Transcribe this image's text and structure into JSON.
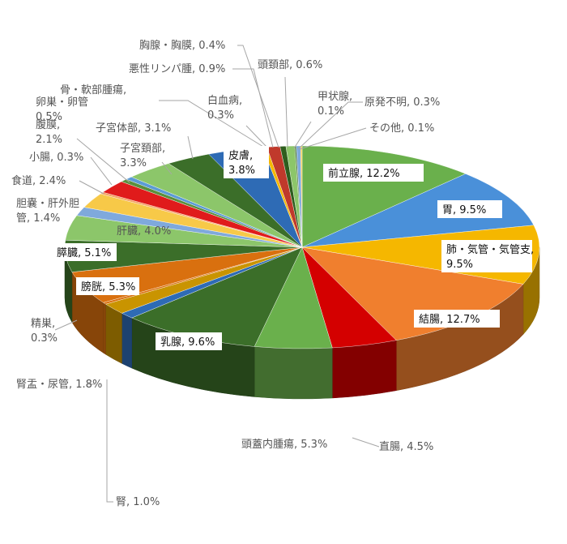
{
  "chart_data": {
    "type": "pie",
    "title": "",
    "three_d": true,
    "slices": [
      {
        "name": "前立腺",
        "value": 12.2,
        "label": "前立腺, 12.2%",
        "color": "#6ab04c"
      },
      {
        "name": "胃",
        "value": 9.5,
        "label": "胃, 9.5%",
        "color": "#4a90d9"
      },
      {
        "name": "肺・気管・気管支",
        "value": 9.5,
        "label1": "肺・気管・気管支,",
        "label2": "9.5%",
        "color": "#f5b700"
      },
      {
        "name": "結腸",
        "value": 12.7,
        "label": "結腸, 12.7%",
        "color": "#f07f2e"
      },
      {
        "name": "直腸",
        "value": 4.5,
        "label": "直腸, 4.5%",
        "color": "#d40000"
      },
      {
        "name": "頭蓋内腫瘍",
        "value": 5.3,
        "label": "頭蓋内腫瘍, 5.3%",
        "color": "#6ab04c"
      },
      {
        "name": "乳腺",
        "value": 9.6,
        "label": "乳腺, 9.6%",
        "color": "#3b6e29"
      },
      {
        "name": "腎",
        "value": 1.0,
        "label": "腎, 1.0%",
        "color": "#2e6bb5"
      },
      {
        "name": "腎盂・尿管",
        "value": 1.8,
        "label": "腎盂・尿管, 1.8%",
        "color": "#c99400"
      },
      {
        "name": "精巣",
        "value": 0.3,
        "label1": "精巣,",
        "label2": "0.3%",
        "color": "#d9700f"
      },
      {
        "name": "膀胱",
        "value": 5.3,
        "label": "膀胱, 5.3%",
        "color": "#d9700f"
      },
      {
        "name": "膵臓",
        "value": 5.1,
        "label": "膵臓, 5.1%",
        "color": "#3b6e29"
      },
      {
        "name": "肝臓",
        "value": 4.0,
        "label": "肝臓, 4.0%",
        "color": "#8cc66a"
      },
      {
        "name": "胆嚢・肝外胆管",
        "value": 1.4,
        "label1": "胆嚢・肝外胆",
        "label2": "管, 1.4%",
        "color": "#7fa9dc"
      },
      {
        "name": "食道",
        "value": 2.4,
        "label": "食道, 2.4%",
        "color": "#f7c948"
      },
      {
        "name": "小腸",
        "value": 0.3,
        "label": "小腸, 0.3%",
        "color": "#f4a261"
      },
      {
        "name": "腹膜",
        "value": 2.1,
        "label1": "腹膜,",
        "label2": "2.1%",
        "color": "#e01b1b"
      },
      {
        "name": "卵巣・卵管",
        "value": 0.5,
        "label1": "卵巣・卵管",
        "label2": "0.5%",
        "color": "#5a8f3c"
      },
      {
        "name": "骨・軟部腫瘍",
        "value": 0.5,
        "label1": "骨・軟部腫瘍,",
        "label2": "",
        "color": "#5b9bd5"
      },
      {
        "name": "子宮頚部",
        "value": 3.3,
        "label1": "子宮頚部,",
        "label2": "3.3%",
        "color": "#8cc66a"
      },
      {
        "name": "子宮体部",
        "value": 3.1,
        "label": "子宮体部, 3.1%",
        "color": "#3b6e29"
      },
      {
        "name": "皮膚",
        "value": 3.8,
        "label1": "皮膚,",
        "label2": "3.8%",
        "color": "#2e6bb5"
      },
      {
        "name": "白血病",
        "value": 0.3,
        "label1": "白血病,",
        "label2": "0.3%",
        "color": "#f5b700"
      },
      {
        "name": "悪性リンパ腫",
        "value": 0.9,
        "label": "悪性リンパ腫, 0.9%",
        "color": "#c0392b"
      },
      {
        "name": "胸腺・胸膜",
        "value": 0.4,
        "label": "胸腺・胸膜, 0.4%",
        "color": "#2e5e1e"
      },
      {
        "name": "頭頚部",
        "value": 0.6,
        "label": "頭頚部, 0.6%",
        "color": "#8cc66a"
      },
      {
        "name": "甲状腺",
        "value": 0.1,
        "label1": "甲状腺,",
        "label2": "0.1%",
        "color": "#3b6e29"
      },
      {
        "name": "原発不明",
        "value": 0.3,
        "label": "原発不明, 0.3%",
        "color": "#7fa9dc"
      },
      {
        "name": "その他",
        "value": 0.1,
        "label": "その他, 0.1%",
        "color": "#f7c948"
      }
    ]
  }
}
